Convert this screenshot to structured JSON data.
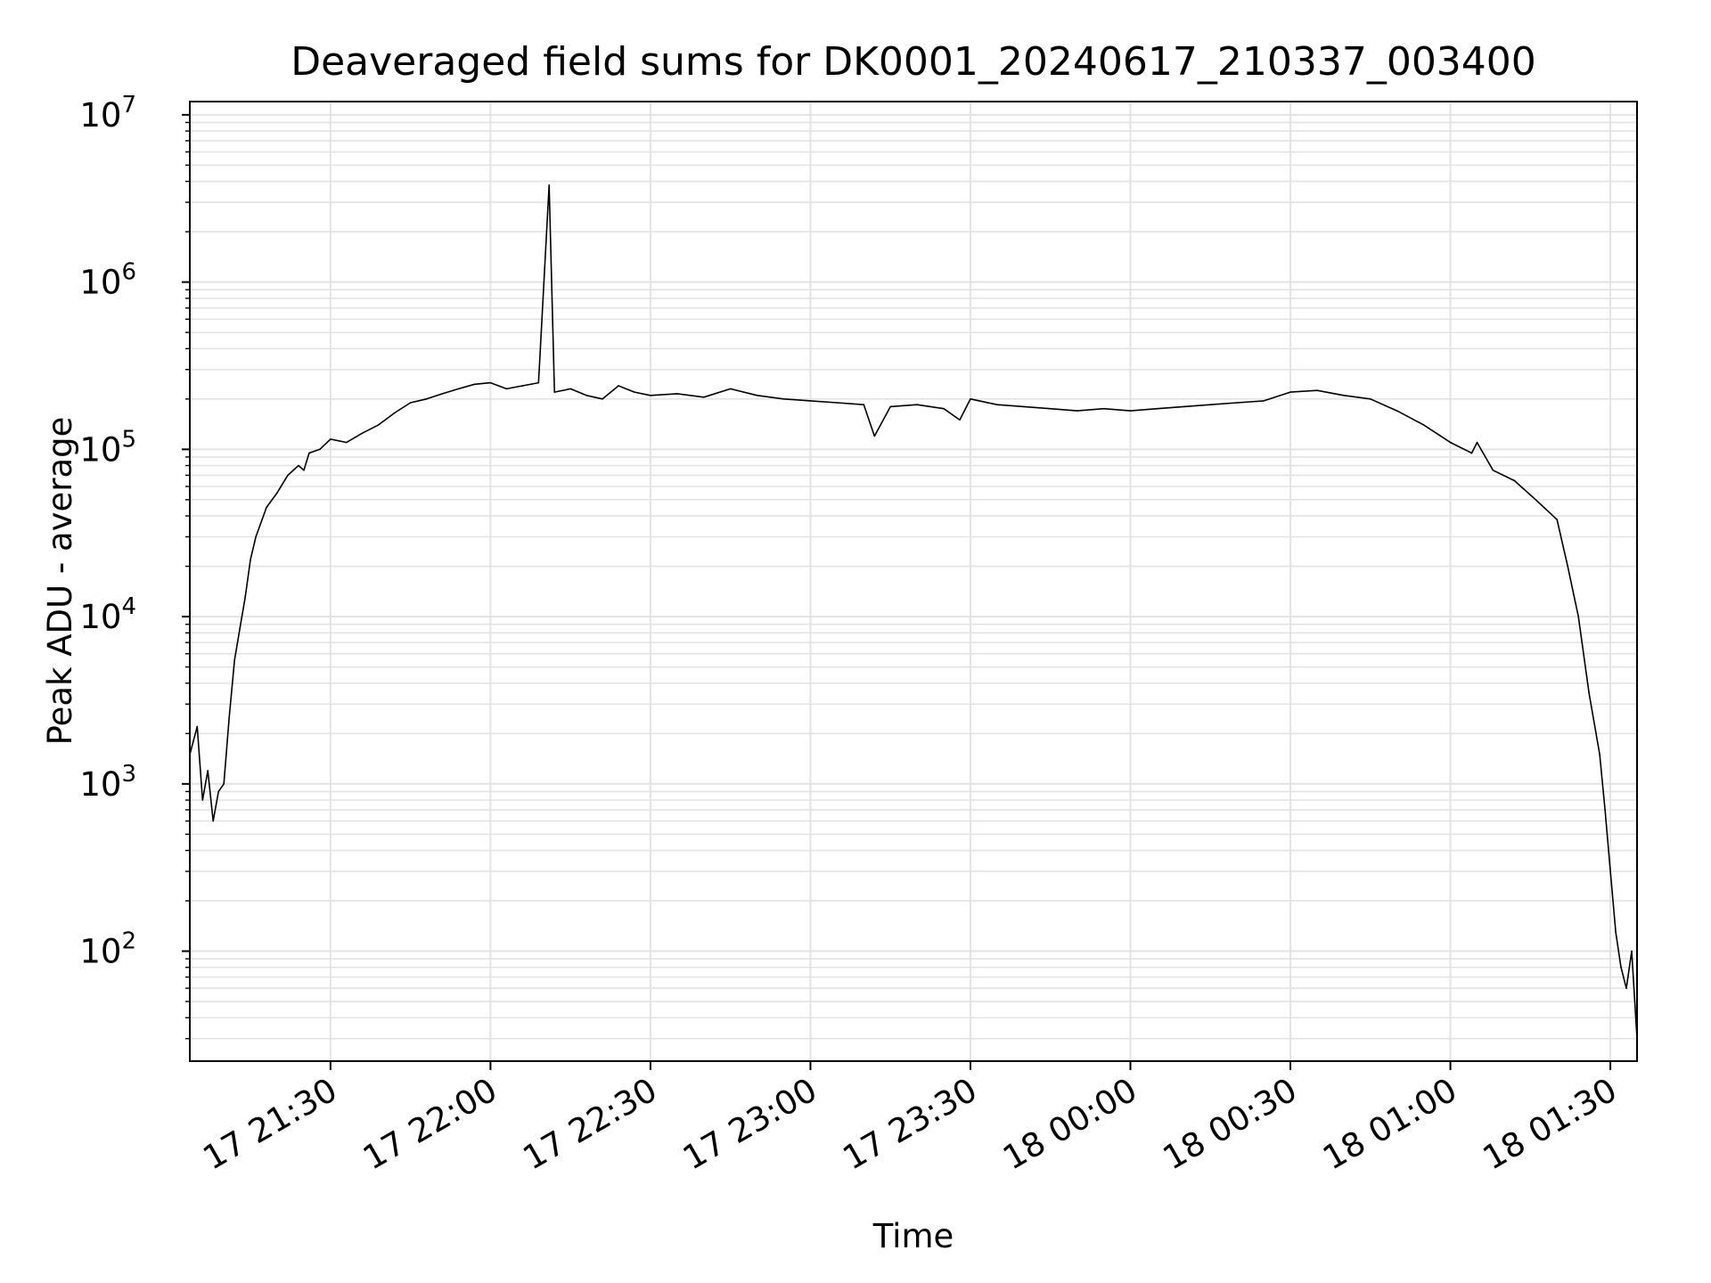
{
  "chart_data": {
    "type": "line",
    "title": "Deaveraged field sums for DK0001_20240617_210337_003400",
    "xlabel": "Time",
    "ylabel": "Peak ADU - average",
    "yscale": "log",
    "ylim": [
      22,
      12000000
    ],
    "xlim": [
      "2024-06-17 21:03:37",
      "2024-06-18 01:35:00"
    ],
    "x_ticks": [
      {
        "t": "2024-06-17 21:30:00",
        "label": "17 21:30"
      },
      {
        "t": "2024-06-17 22:00:00",
        "label": "17 22:00"
      },
      {
        "t": "2024-06-17 22:30:00",
        "label": "17 22:30"
      },
      {
        "t": "2024-06-17 23:00:00",
        "label": "17 23:00"
      },
      {
        "t": "2024-06-17 23:30:00",
        "label": "17 23:30"
      },
      {
        "t": "2024-06-18 00:00:00",
        "label": "18 00:00"
      },
      {
        "t": "2024-06-18 00:30:00",
        "label": "18 00:30"
      },
      {
        "t": "2024-06-18 01:00:00",
        "label": "18 01:00"
      },
      {
        "t": "2024-06-18 01:30:00",
        "label": "18 01:30"
      }
    ],
    "y_ticks": [
      {
        "value": 100,
        "base": "10",
        "exp": "2"
      },
      {
        "value": 1000,
        "base": "10",
        "exp": "3"
      },
      {
        "value": 10000,
        "base": "10",
        "exp": "4"
      },
      {
        "value": 100000,
        "base": "10",
        "exp": "5"
      },
      {
        "value": 1000000,
        "base": "10",
        "exp": "6"
      },
      {
        "value": 10000000,
        "base": "10",
        "exp": "7"
      }
    ],
    "grid": true,
    "line_color": "#000000",
    "grid_color": "#e3e3e3",
    "series": [
      {
        "x": [
          "2024-06-17 21:03:37",
          "2024-06-17 21:05:00",
          "2024-06-17 21:06:00",
          "2024-06-17 21:07:00",
          "2024-06-17 21:08:00",
          "2024-06-17 21:09:00",
          "2024-06-17 21:10:00",
          "2024-06-17 21:11:00",
          "2024-06-17 21:12:00",
          "2024-06-17 21:13:00",
          "2024-06-17 21:14:00",
          "2024-06-17 21:15:00",
          "2024-06-17 21:16:00",
          "2024-06-17 21:18:00",
          "2024-06-17 21:20:00",
          "2024-06-17 21:22:00",
          "2024-06-17 21:24:00",
          "2024-06-17 21:25:00",
          "2024-06-17 21:26:00",
          "2024-06-17 21:28:00",
          "2024-06-17 21:30:00",
          "2024-06-17 21:33:00",
          "2024-06-17 21:36:00",
          "2024-06-17 21:39:00",
          "2024-06-17 21:42:00",
          "2024-06-17 21:45:00",
          "2024-06-17 21:48:00",
          "2024-06-17 21:51:00",
          "2024-06-17 21:54:00",
          "2024-06-17 21:57:00",
          "2024-06-17 22:00:00",
          "2024-06-17 22:03:00",
          "2024-06-17 22:06:00",
          "2024-06-17 22:09:00",
          "2024-06-17 22:11:00",
          "2024-06-17 22:12:00",
          "2024-06-17 22:15:00",
          "2024-06-17 22:18:00",
          "2024-06-17 22:21:00",
          "2024-06-17 22:24:00",
          "2024-06-17 22:27:00",
          "2024-06-17 22:30:00",
          "2024-06-17 22:35:00",
          "2024-06-17 22:40:00",
          "2024-06-17 22:45:00",
          "2024-06-17 22:50:00",
          "2024-06-17 22:55:00",
          "2024-06-17 23:00:00",
          "2024-06-17 23:05:00",
          "2024-06-17 23:10:00",
          "2024-06-17 23:12:00",
          "2024-06-17 23:15:00",
          "2024-06-17 23:20:00",
          "2024-06-17 23:25:00",
          "2024-06-17 23:28:00",
          "2024-06-17 23:30:00",
          "2024-06-17 23:35:00",
          "2024-06-17 23:40:00",
          "2024-06-17 23:45:00",
          "2024-06-17 23:50:00",
          "2024-06-17 23:55:00",
          "2024-06-18 00:00:00",
          "2024-06-18 00:05:00",
          "2024-06-18 00:10:00",
          "2024-06-18 00:15:00",
          "2024-06-18 00:20:00",
          "2024-06-18 00:25:00",
          "2024-06-18 00:30:00",
          "2024-06-18 00:35:00",
          "2024-06-18 00:40:00",
          "2024-06-18 00:45:00",
          "2024-06-18 00:50:00",
          "2024-06-18 00:55:00",
          "2024-06-18 01:00:00",
          "2024-06-18 01:04:00",
          "2024-06-18 01:05:00",
          "2024-06-18 01:08:00",
          "2024-06-18 01:12:00",
          "2024-06-18 01:16:00",
          "2024-06-18 01:20:00",
          "2024-06-18 01:22:00",
          "2024-06-18 01:24:00",
          "2024-06-18 01:26:00",
          "2024-06-18 01:28:00",
          "2024-06-18 01:29:00",
          "2024-06-18 01:30:00",
          "2024-06-18 01:31:00",
          "2024-06-18 01:32:00",
          "2024-06-18 01:33:00",
          "2024-06-18 01:34:00",
          "2024-06-18 01:35:00"
        ],
        "y": [
          1500,
          2200,
          800,
          1200,
          600,
          900,
          1000,
          2500,
          5500,
          8500,
          13000,
          22000,
          30000,
          45000,
          55000,
          70000,
          80000,
          75000,
          95000,
          100000,
          115000,
          110000,
          125000,
          140000,
          165000,
          190000,
          200000,
          215000,
          230000,
          245000,
          250000,
          230000,
          240000,
          250000,
          3800000,
          220000,
          230000,
          210000,
          200000,
          240000,
          220000,
          210000,
          215000,
          205000,
          230000,
          210000,
          200000,
          195000,
          190000,
          185000,
          120000,
          180000,
          185000,
          175000,
          150000,
          200000,
          185000,
          180000,
          175000,
          170000,
          175000,
          170000,
          175000,
          180000,
          185000,
          190000,
          195000,
          220000,
          225000,
          210000,
          200000,
          170000,
          140000,
          110000,
          95000,
          110000,
          75000,
          65000,
          50000,
          38000,
          20000,
          10000,
          3500,
          1500,
          700,
          300,
          130,
          80,
          60,
          100,
          30
        ]
      }
    ]
  }
}
